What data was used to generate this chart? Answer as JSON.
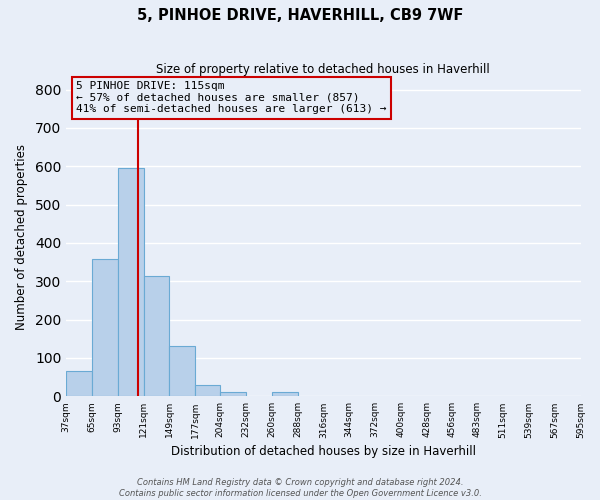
{
  "title_line1": "5, PINHOE DRIVE, HAVERHILL, CB9 7WF",
  "title_line2": "Size of property relative to detached houses in Haverhill",
  "xlabel": "Distribution of detached houses by size in Haverhill",
  "ylabel": "Number of detached properties",
  "bar_edges": [
    37,
    65,
    93,
    121,
    149,
    177,
    204,
    232,
    260,
    288,
    316,
    344,
    372,
    400,
    428,
    456,
    483,
    511,
    539,
    567,
    595
  ],
  "bar_heights": [
    65,
    358,
    595,
    315,
    130,
    30,
    10,
    0,
    10,
    0,
    0,
    0,
    0,
    0,
    0,
    0,
    0,
    0,
    0,
    0
  ],
  "bar_color": "#b8d0ea",
  "bar_edge_color": "#6aaad4",
  "property_line_x": 115,
  "property_line_color": "#cc0000",
  "ylim": [
    0,
    830
  ],
  "xlim": [
    37,
    595
  ],
  "annotation_title": "5 PINHOE DRIVE: 115sqm",
  "annotation_line1": "← 57% of detached houses are smaller (857)",
  "annotation_line2": "41% of semi-detached houses are larger (613) →",
  "annotation_box_color": "#cc0000",
  "footer_line1": "Contains HM Land Registry data © Crown copyright and database right 2024.",
  "footer_line2": "Contains public sector information licensed under the Open Government Licence v3.0.",
  "bg_color": "#e8eef8",
  "grid_color": "#ffffff",
  "tick_labels": [
    "37sqm",
    "65sqm",
    "93sqm",
    "121sqm",
    "149sqm",
    "177sqm",
    "204sqm",
    "232sqm",
    "260sqm",
    "288sqm",
    "316sqm",
    "344sqm",
    "372sqm",
    "400sqm",
    "428sqm",
    "456sqm",
    "483sqm",
    "511sqm",
    "539sqm",
    "567sqm",
    "595sqm"
  ],
  "yticks": [
    0,
    100,
    200,
    300,
    400,
    500,
    600,
    700,
    800
  ]
}
